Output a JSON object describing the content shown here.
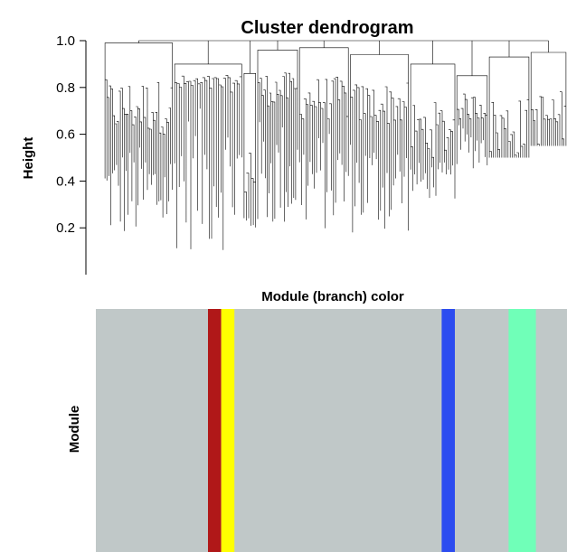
{
  "chart_data": [
    {
      "type": "dendrogram",
      "title": "Cluster dendrogram",
      "ylabel": "Height",
      "xlabel": "",
      "ylim": [
        0.0,
        1.0
      ],
      "yticks": [
        1.0,
        0.8,
        0.6,
        0.4,
        0.2
      ],
      "ytick_labels": [
        "1.0",
        "0.8",
        "0.6",
        "0.4",
        "0.2"
      ],
      "grid": false,
      "clusters": [
        {
          "range": [
            0.0,
            0.15
          ],
          "merge": 0.99,
          "min": 0.6,
          "floor": 0.14,
          "n": 36
        },
        {
          "range": [
            0.15,
            0.3
          ],
          "merge": 0.9,
          "min": 0.78,
          "floor": 0.1,
          "n": 30
        },
        {
          "range": [
            0.3,
            0.33
          ],
          "merge": 0.86,
          "min": 0.28,
          "floor": 0.18,
          "n": 6
        },
        {
          "range": [
            0.33,
            0.42
          ],
          "merge": 0.96,
          "min": 0.72,
          "floor": 0.18,
          "n": 22
        },
        {
          "range": [
            0.42,
            0.53
          ],
          "merge": 0.97,
          "min": 0.66,
          "floor": 0.18,
          "n": 24
        },
        {
          "range": [
            0.53,
            0.66
          ],
          "merge": 0.94,
          "min": 0.64,
          "floor": 0.17,
          "n": 28
        },
        {
          "range": [
            0.66,
            0.76
          ],
          "merge": 0.9,
          "min": 0.5,
          "floor": 0.32,
          "n": 22
        },
        {
          "range": [
            0.76,
            0.83
          ],
          "merge": 0.85,
          "min": 0.66,
          "floor": 0.45,
          "n": 16
        },
        {
          "range": [
            0.83,
            0.92
          ],
          "merge": 0.93,
          "min": 0.5,
          "floor": 0.5,
          "n": 20
        },
        {
          "range": [
            0.92,
            1.0
          ],
          "merge": 0.95,
          "min": 0.55,
          "floor": 0.55,
          "n": 18
        }
      ]
    },
    {
      "type": "heatmap",
      "title": "Module (branch) color",
      "ylabel": "Module",
      "background": "#c0c8c8",
      "bands": [
        {
          "start": 0.238,
          "end": 0.266,
          "color": "#b01818"
        },
        {
          "start": 0.266,
          "end": 0.294,
          "color": "#ffff00"
        },
        {
          "start": 0.734,
          "end": 0.762,
          "color": "#2c4cf0"
        },
        {
          "start": 0.876,
          "end": 0.934,
          "color": "#70ffb8"
        }
      ]
    }
  ]
}
